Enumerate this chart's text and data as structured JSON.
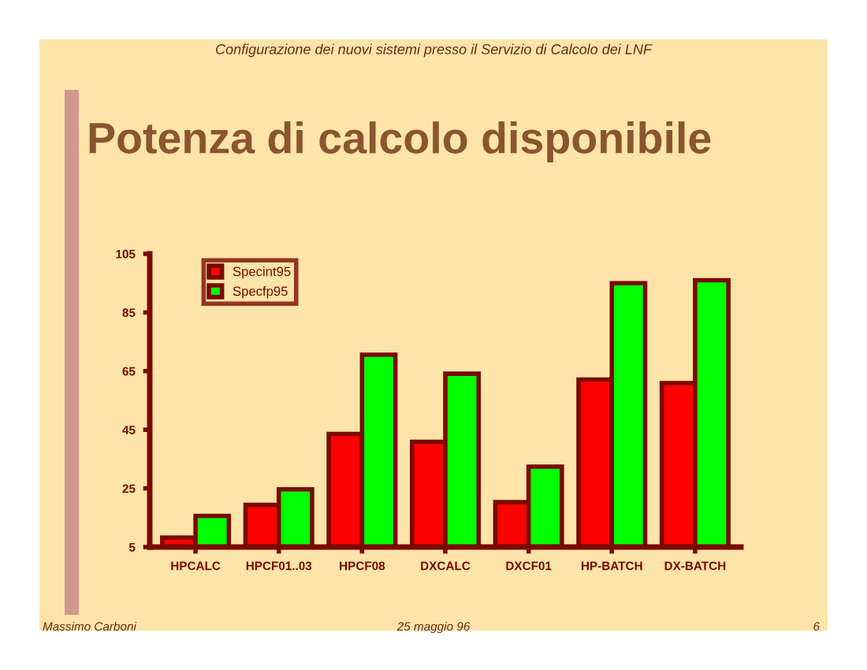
{
  "chart_data": {
    "type": "bar",
    "title": "Potenza di calcolo disponibile",
    "categories": [
      "HPCALC",
      "HPCF01..03",
      "HPCF08",
      "DXCALC",
      "DXCF01",
      "HP-BATCH",
      "DX-BATCH"
    ],
    "series": [
      {
        "name": "Specint95",
        "color": "#ff0000",
        "values": [
          8.2,
          19.4,
          43.6,
          40.9,
          20.3,
          62.1,
          60.9
        ]
      },
      {
        "name": "Specfp95",
        "color": "#00ff00",
        "values": [
          15.6,
          24.7,
          70.6,
          64.1,
          32.4,
          95,
          96
        ]
      }
    ],
    "ylim": [
      5,
      105
    ],
    "yticks": [
      5,
      25,
      45,
      65,
      85,
      105
    ],
    "grid": false,
    "legend": "top left",
    "annotations": [
      "Configurazione dei nuovi sistemi presso il Servizio di Calcolo dei LNF",
      "Massimo Carboni",
      "25 maggio 96",
      "6"
    ]
  }
}
